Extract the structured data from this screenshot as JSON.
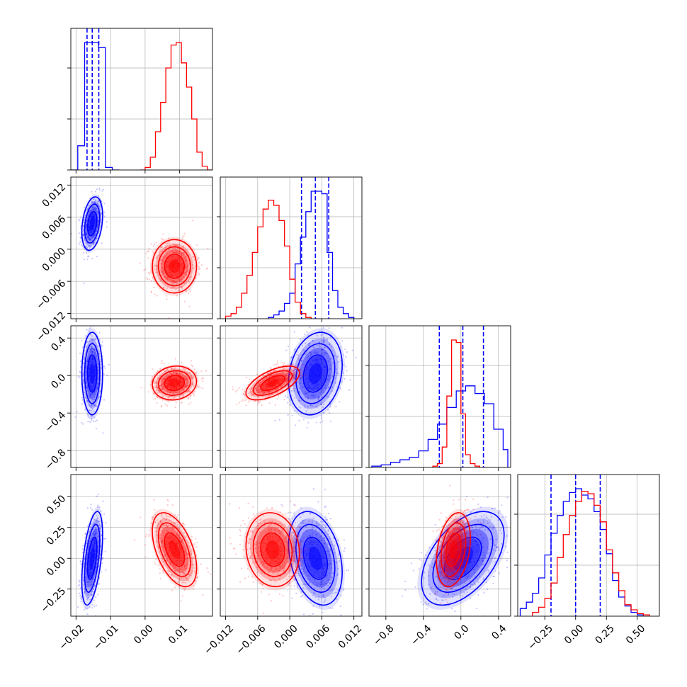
{
  "chart_data": {
    "type": "corner",
    "title": "",
    "parameters": [
      "",
      "",
      "",
      ""
    ],
    "colors": {
      "blue": "#0000ff",
      "red": "#ff0000"
    },
    "grid": true,
    "axes": {
      "p0": {
        "range": [
          -0.0215,
          0.0195
        ],
        "ticks": [
          -0.02,
          -0.01,
          0.0,
          0.01
        ],
        "tick_labels": [
          "−0.02",
          "−0.01",
          "0.00",
          "0.01"
        ]
      },
      "p1": {
        "range": [
          -0.013,
          0.0135
        ],
        "ticks": [
          -0.012,
          -0.006,
          0.0,
          0.006,
          0.012
        ],
        "tick_labels": [
          "−0.012",
          "−0.006",
          "0.000",
          "0.006",
          "0.012"
        ]
      },
      "p2": {
        "range": [
          -0.98,
          0.53
        ],
        "ticks": [
          -0.8,
          -0.4,
          0.0,
          0.4
        ],
        "tick_labels": [
          "−0.8",
          "−0.4",
          "0.0",
          "0.4"
        ]
      },
      "p3": {
        "range": [
          -0.47,
          0.68
        ],
        "ticks": [
          -0.25,
          0.0,
          0.25,
          0.5
        ],
        "tick_labels": [
          "−0.25",
          "0.00",
          "0.25",
          "0.50"
        ]
      }
    },
    "series": [
      {
        "color": "blue",
        "mean": [
          -0.0153,
          0.0048,
          0.02,
          0.0
        ],
        "std": [
          0.0015,
          0.0025,
          0.22,
          0.19
        ],
        "correlation": [
          [
            1,
            0.3,
            0.0,
            0.5
          ],
          [
            0.3,
            1,
            0.2,
            -0.3
          ],
          [
            0.0,
            0.2,
            1,
            0.5
          ],
          [
            0.5,
            -0.3,
            0.5,
            1
          ]
        ],
        "quantiles": [
          [
            -0.0168,
            -0.0153,
            -0.0134
          ],
          [
            0.0022,
            0.0048,
            0.0073
          ],
          [
            -0.23,
            0.02,
            0.24
          ],
          [
            -0.2,
            0.0,
            0.2
          ]
        ],
        "hist": {
          "p0": {
            "edges": [
              -0.0215,
              -0.0195,
              -0.0175,
              -0.0155,
              -0.0135,
              -0.0115,
              -0.0095,
              -0.0075
            ],
            "counts": [
              0.0,
              0.19,
              1.0,
              1.0,
              0.96,
              0.02,
              0.0
            ]
          },
          "p1": {
            "edges": [
              -0.004,
              -0.003,
              -0.002,
              -0.001,
              0.0,
              0.001,
              0.002,
              0.003,
              0.004,
              0.005,
              0.006,
              0.007,
              0.008,
              0.009,
              0.01,
              0.011,
              0.012
            ],
            "counts": [
              0.01,
              0.03,
              0.06,
              0.12,
              0.2,
              0.43,
              0.64,
              0.84,
              1.0,
              1.0,
              0.98,
              0.52,
              0.22,
              0.09,
              0.04,
              0.01
            ]
          },
          "p2": {
            "edges": [
              -0.95,
              -0.85,
              -0.75,
              -0.65,
              -0.55,
              -0.45,
              -0.35,
              -0.25,
              -0.15,
              -0.05,
              0.05,
              0.15,
              0.25,
              0.35,
              0.45,
              0.5
            ],
            "counts": [
              0.01,
              0.02,
              0.04,
              0.06,
              0.08,
              0.13,
              0.22,
              0.34,
              0.47,
              0.6,
              0.64,
              0.58,
              0.5,
              0.3,
              0.14
            ]
          },
          "p3": {
            "edges": [
              -0.45,
              -0.4,
              -0.35,
              -0.3,
              -0.25,
              -0.2,
              -0.15,
              -0.1,
              -0.05,
              0.0,
              0.05,
              0.1,
              0.15,
              0.2,
              0.25,
              0.3,
              0.35,
              0.4,
              0.45,
              0.5,
              0.55
            ],
            "counts": [
              0.06,
              0.11,
              0.18,
              0.3,
              0.48,
              0.65,
              0.79,
              0.9,
              0.97,
              1.0,
              0.95,
              0.92,
              0.82,
              0.68,
              0.49,
              0.28,
              0.15,
              0.08,
              0.03,
              0.01
            ]
          }
        }
      },
      {
        "color": "red",
        "mean": [
          0.0085,
          -0.0032,
          -0.08,
          0.07
        ],
        "std": [
          0.0032,
          0.0025,
          0.09,
          0.15
        ],
        "correlation": [
          [
            1,
            0.0,
            0.1,
            -0.5
          ],
          [
            0.0,
            1,
            0.6,
            -0.1
          ],
          [
            0.1,
            0.6,
            1,
            0.3
          ],
          [
            -0.5,
            -0.1,
            0.3,
            1
          ]
        ],
        "quantiles": [],
        "hist": {
          "p0": {
            "edges": [
              -0.0015,
              0.0,
              0.0015,
              0.003,
              0.0045,
              0.006,
              0.0075,
              0.009,
              0.0105,
              0.012,
              0.0135,
              0.015,
              0.0165,
              0.018,
              0.0195
            ],
            "counts": [
              0.0,
              0.02,
              0.1,
              0.3,
              0.53,
              0.8,
              0.98,
              1.0,
              0.84,
              0.65,
              0.4,
              0.14,
              0.03,
              0.0
            ]
          },
          "p1": {
            "edges": [
              -0.012,
              -0.011,
              -0.01,
              -0.009,
              -0.008,
              -0.007,
              -0.006,
              -0.005,
              -0.004,
              -0.003,
              -0.002,
              -0.001,
              0.0,
              0.001,
              0.002,
              0.003,
              0.004
            ],
            "counts": [
              0.02,
              0.04,
              0.09,
              0.2,
              0.34,
              0.52,
              0.72,
              0.86,
              0.93,
              0.89,
              0.77,
              0.57,
              0.31,
              0.13,
              0.04,
              0.01
            ]
          },
          "p2": {
            "edges": [
              -0.3,
              -0.25,
              -0.2,
              -0.15,
              -0.1,
              -0.05,
              0.0,
              0.05,
              0.1,
              0.15,
              0.2
            ],
            "counts": [
              0.01,
              0.03,
              0.16,
              0.56,
              1.0,
              0.98,
              0.42,
              0.1,
              0.03,
              0.01
            ]
          },
          "p3": {
            "edges": [
              -0.35,
              -0.3,
              -0.25,
              -0.2,
              -0.15,
              -0.1,
              -0.05,
              0.0,
              0.05,
              0.1,
              0.15,
              0.2,
              0.25,
              0.3,
              0.35,
              0.4,
              0.45,
              0.5,
              0.55,
              0.6
            ],
            "counts": [
              0.03,
              0.07,
              0.14,
              0.26,
              0.46,
              0.64,
              0.79,
              0.9,
              0.98,
              0.96,
              0.87,
              0.74,
              0.52,
              0.34,
              0.2,
              0.09,
              0.05,
              0.02,
              0.01
            ]
          }
        }
      }
    ]
  }
}
